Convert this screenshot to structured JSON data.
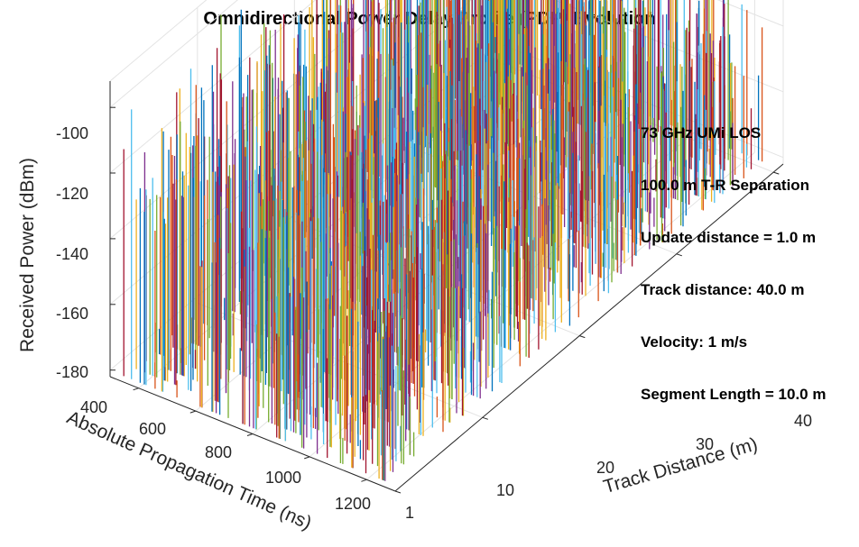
{
  "chart_data": {
    "type": "3d-stem",
    "title": "Omnidirectional Power Delay Profile (PDP) Evolution",
    "zlabel": "Received Power (dBm)",
    "xlabel": "Absolute Propagation Time (ns)",
    "ylabel": "Track Distance (m)",
    "zticks": [
      "-100",
      "-120",
      "-140",
      "-160",
      "-180"
    ],
    "xticks": [
      "400",
      "600",
      "800",
      "1000",
      "1200"
    ],
    "yticks": [
      "1",
      "10",
      "20",
      "30",
      "40"
    ],
    "zlim": [
      -182,
      -92
    ],
    "xlim": [
      300,
      1300
    ],
    "ylim": [
      1,
      41
    ],
    "grid": true,
    "annotations": [
      "73 GHz UMi LOS",
      "100.0 m T-R Separation",
      "Update distance = 1.0 m",
      "Track distance: 40.0 m",
      "Velocity: 1 m/s",
      "Segment Length = 10.0 m"
    ],
    "series_colors": [
      "#0072bd",
      "#d95319",
      "#edb120",
      "#7e2f8e",
      "#77ac30",
      "#4dbeee",
      "#a2142f"
    ]
  }
}
